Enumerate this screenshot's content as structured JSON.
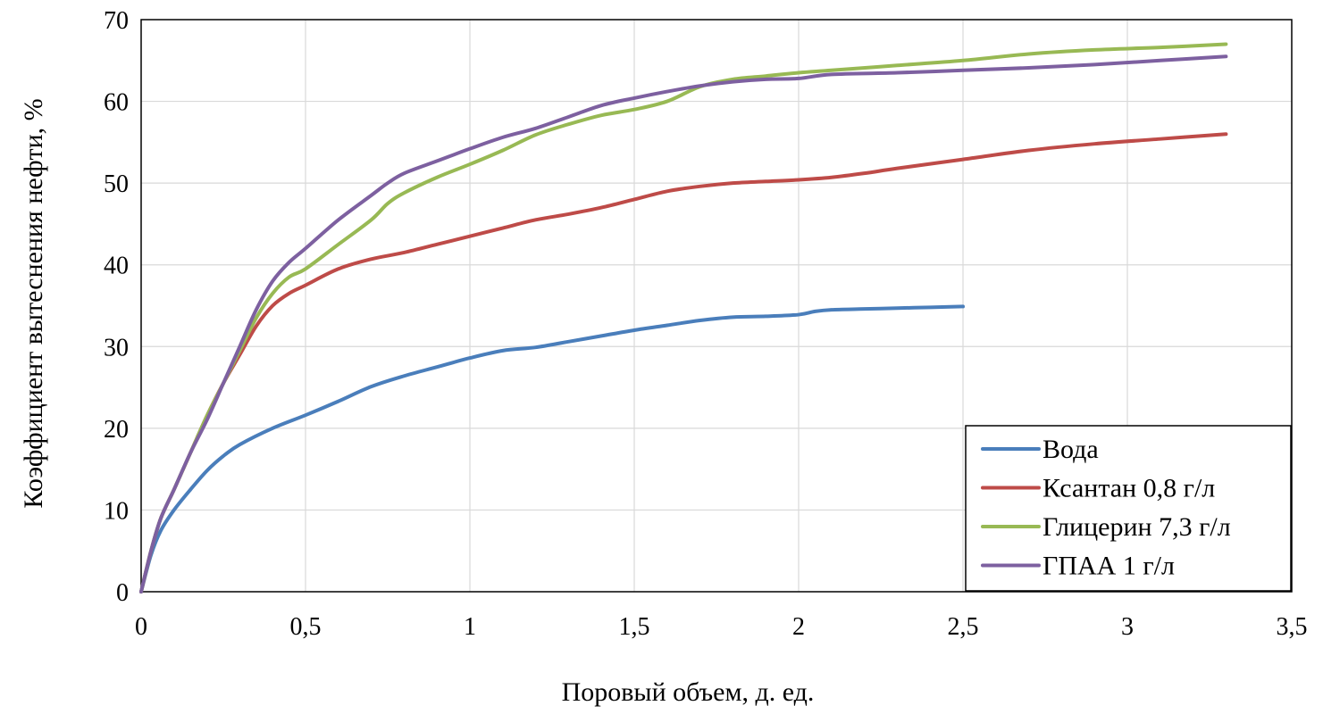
{
  "chart_data": {
    "type": "line",
    "title": "",
    "xlabel": "Поровый объем, д. ед.",
    "ylabel": "Коэффициент вытеснения нефти, %",
    "xlim": [
      0,
      3.5
    ],
    "ylim": [
      0,
      70
    ],
    "x_ticks": [
      "0",
      "0,5",
      "1",
      "1,5",
      "2",
      "2,5",
      "3",
      "3,5"
    ],
    "y_ticks": [
      "0",
      "10",
      "20",
      "30",
      "40",
      "50",
      "60",
      "70"
    ],
    "grid": true,
    "legend_position": "bottom-right",
    "series": [
      {
        "name": "Вода",
        "color": "#4a7ebb",
        "x": [
          0,
          0.03,
          0.06,
          0.1,
          0.15,
          0.2,
          0.25,
          0.3,
          0.4,
          0.5,
          0.6,
          0.7,
          0.8,
          0.9,
          1.0,
          1.1,
          1.2,
          1.3,
          1.4,
          1.5,
          1.6,
          1.7,
          1.8,
          1.9,
          2.0,
          2.05,
          2.1,
          2.2,
          2.3,
          2.4,
          2.5
        ],
        "y": [
          0,
          4.5,
          7.5,
          10,
          12.5,
          14.8,
          16.6,
          18,
          20,
          21.6,
          23.3,
          25.1,
          26.4,
          27.5,
          28.6,
          29.5,
          29.9,
          30.6,
          31.3,
          32,
          32.6,
          33.2,
          33.6,
          33.7,
          33.9,
          34.3,
          34.5,
          34.6,
          34.7,
          34.8,
          34.9
        ]
      },
      {
        "name": "Ксантан 0,8 г/л",
        "color": "#be4b48",
        "x": [
          0,
          0.03,
          0.06,
          0.1,
          0.15,
          0.2,
          0.25,
          0.3,
          0.35,
          0.4,
          0.45,
          0.5,
          0.6,
          0.7,
          0.8,
          0.9,
          1.0,
          1.1,
          1.2,
          1.3,
          1.4,
          1.5,
          1.6,
          1.7,
          1.8,
          1.9,
          2.0,
          2.1,
          2.2,
          2.3,
          2.5,
          2.7,
          2.9,
          3.1,
          3.3
        ],
        "y": [
          0,
          5,
          9,
          12.5,
          17,
          21.5,
          25.5,
          29,
          32.5,
          35,
          36.5,
          37.5,
          39.5,
          40.7,
          41.5,
          42.5,
          43.5,
          44.5,
          45.5,
          46.2,
          47,
          48,
          49,
          49.6,
          50,
          50.2,
          50.4,
          50.7,
          51.2,
          51.8,
          52.9,
          54,
          54.8,
          55.4,
          56
        ]
      },
      {
        "name": "Глицерин 7,3 г/л",
        "color": "#98b954",
        "x": [
          0,
          0.03,
          0.06,
          0.1,
          0.15,
          0.2,
          0.25,
          0.3,
          0.35,
          0.4,
          0.45,
          0.5,
          0.6,
          0.7,
          0.75,
          0.8,
          0.9,
          1.0,
          1.1,
          1.2,
          1.3,
          1.4,
          1.5,
          1.6,
          1.7,
          1.8,
          1.9,
          2.0,
          2.1,
          2.3,
          2.5,
          2.7,
          2.9,
          3.1,
          3.3
        ],
        "y": [
          0,
          5,
          9,
          12.5,
          17,
          21.5,
          25.5,
          29.5,
          33.5,
          36.5,
          38.5,
          39.5,
          42.5,
          45.5,
          47.5,
          48.8,
          50.7,
          52.3,
          54,
          55.9,
          57.2,
          58.3,
          59,
          60,
          61.8,
          62.7,
          63.1,
          63.5,
          63.8,
          64.4,
          65,
          65.8,
          66.3,
          66.6,
          67
        ]
      },
      {
        "name": "ГПАА 1 г/л",
        "color": "#7d60a0",
        "x": [
          0,
          0.03,
          0.06,
          0.1,
          0.15,
          0.2,
          0.25,
          0.3,
          0.35,
          0.4,
          0.45,
          0.5,
          0.6,
          0.7,
          0.75,
          0.8,
          0.9,
          1.0,
          1.1,
          1.2,
          1.3,
          1.4,
          1.5,
          1.6,
          1.7,
          1.8,
          1.9,
          2.0,
          2.1,
          2.3,
          2.5,
          2.7,
          2.9,
          3.1,
          3.3
        ],
        "y": [
          0,
          5,
          9,
          12.5,
          17,
          21,
          25.5,
          30,
          34.5,
          38,
          40.3,
          42,
          45.5,
          48.5,
          50,
          51.2,
          52.7,
          54.2,
          55.6,
          56.7,
          58.1,
          59.5,
          60.4,
          61.2,
          61.9,
          62.4,
          62.7,
          62.8,
          63.3,
          63.5,
          63.8,
          64.1,
          64.5,
          65,
          65.5
        ]
      }
    ]
  }
}
